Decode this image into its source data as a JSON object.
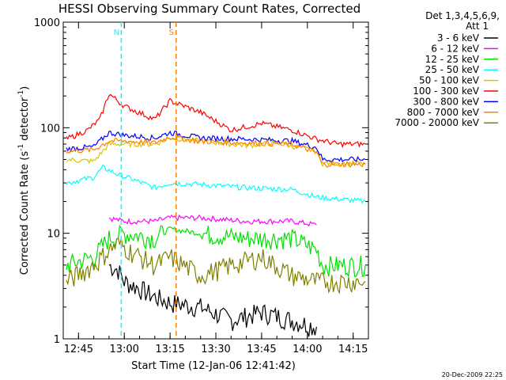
{
  "chart_data": {
    "type": "line",
    "title": "HESSI Observing Summary Count Rates, Corrected",
    "xlabel": "Start Time (12-Jan-06 12:41:42)",
    "ylabel_main": "Corrected Count Rate (s",
    "ylabel_sup": "-1",
    "ylabel_tail": " detector",
    "ylabel_sup2": "-1",
    "ylabel_close": ")",
    "yscale": "log",
    "ylim": [
      1,
      1000
    ],
    "xlim_minutes": [
      "12:40",
      "14:20"
    ],
    "x_ticks": [
      "12:45",
      "13:00",
      "13:15",
      "13:30",
      "13:45",
      "14:00",
      "14:15"
    ],
    "y_ticks": [
      "1",
      "10",
      "100",
      "1000"
    ],
    "legend_header": [
      "Det 1,3,4,5,6,9,",
      "Att 1"
    ],
    "legend_position": "right",
    "footer_date": "20-Dec-2009 22:25",
    "markers": [
      {
        "label": "N",
        "time": "12:59",
        "color": "#00ffff"
      },
      {
        "label": "S",
        "time": "13:17",
        "color": "#ff8000"
      }
    ],
    "series": [
      {
        "name": "3 - 6 keV",
        "color": "#000000",
        "points": [
          [
            "12:55",
            5
          ],
          [
            "12:58",
            4.5
          ],
          [
            "13:00",
            3.5
          ],
          [
            "13:05",
            3
          ],
          [
            "13:10",
            2.5
          ],
          [
            "13:15",
            2.2
          ],
          [
            "13:25",
            2
          ],
          [
            "13:35",
            1.5
          ],
          [
            "13:45",
            1.8
          ],
          [
            "13:55",
            1.5
          ],
          [
            "14:03",
            1.3
          ]
        ]
      },
      {
        "name": "6 - 12 keV",
        "color": "#ff00ff",
        "points": [
          [
            "12:55",
            14
          ],
          [
            "13:00",
            13
          ],
          [
            "13:10",
            13
          ],
          [
            "13:15",
            14
          ],
          [
            "13:25",
            14
          ],
          [
            "13:40",
            13
          ],
          [
            "13:55",
            13
          ],
          [
            "14:03",
            12
          ]
        ]
      },
      {
        "name": "12 - 25 keV",
        "color": "#00e000",
        "points": [
          [
            "12:41",
            5
          ],
          [
            "12:50",
            6
          ],
          [
            "12:55",
            9
          ],
          [
            "13:00",
            10
          ],
          [
            "13:10",
            9
          ],
          [
            "13:15",
            11
          ],
          [
            "13:25",
            10
          ],
          [
            "13:40",
            9
          ],
          [
            "13:55",
            9
          ],
          [
            "14:03",
            7
          ],
          [
            "14:05",
            5
          ],
          [
            "14:19",
            5
          ]
        ]
      },
      {
        "name": "25 - 50 keV",
        "color": "#00ffff",
        "points": [
          [
            "12:41",
            30
          ],
          [
            "12:50",
            34
          ],
          [
            "12:53",
            42
          ],
          [
            "12:58",
            36
          ],
          [
            "13:02",
            33
          ],
          [
            "13:10",
            27
          ],
          [
            "13:15",
            30
          ],
          [
            "13:25",
            29
          ],
          [
            "13:40",
            27
          ],
          [
            "13:55",
            26
          ],
          [
            "14:03",
            22
          ],
          [
            "14:19",
            20
          ]
        ]
      },
      {
        "name": "50 - 100 keV",
        "color": "#e0c000",
        "points": [
          [
            "12:41",
            50
          ],
          [
            "12:50",
            48
          ],
          [
            "12:55",
            70
          ],
          [
            "13:00",
            70
          ],
          [
            "13:10",
            70
          ],
          [
            "13:15",
            80
          ],
          [
            "13:25",
            75
          ],
          [
            "13:40",
            68
          ],
          [
            "13:50",
            72
          ],
          [
            "14:03",
            60
          ],
          [
            "14:05",
            46
          ],
          [
            "14:19",
            46
          ]
        ]
      },
      {
        "name": "100 - 300 keV",
        "color": "#ff0000",
        "points": [
          [
            "12:41",
            78
          ],
          [
            "12:48",
            95
          ],
          [
            "12:52",
            120
          ],
          [
            "12:55",
            210
          ],
          [
            "13:00",
            160
          ],
          [
            "13:10",
            120
          ],
          [
            "13:15",
            180
          ],
          [
            "13:25",
            140
          ],
          [
            "13:35",
            95
          ],
          [
            "13:45",
            110
          ],
          [
            "13:55",
            95
          ],
          [
            "14:03",
            78
          ],
          [
            "14:10",
            70
          ],
          [
            "14:19",
            70
          ]
        ]
      },
      {
        "name": "300 - 800 keV",
        "color": "#0000ff",
        "points": [
          [
            "12:41",
            63
          ],
          [
            "12:50",
            66
          ],
          [
            "12:55",
            90
          ],
          [
            "13:00",
            85
          ],
          [
            "13:10",
            80
          ],
          [
            "13:15",
            90
          ],
          [
            "13:25",
            80
          ],
          [
            "13:40",
            78
          ],
          [
            "13:55",
            75
          ],
          [
            "14:03",
            65
          ],
          [
            "14:05",
            50
          ],
          [
            "14:19",
            50
          ]
        ]
      },
      {
        "name": "800 - 7000 keV",
        "color": "#ff8000",
        "points": [
          [
            "12:41",
            60
          ],
          [
            "12:50",
            62
          ],
          [
            "12:55",
            75
          ],
          [
            "13:00",
            75
          ],
          [
            "13:10",
            72
          ],
          [
            "13:15",
            82
          ],
          [
            "13:25",
            74
          ],
          [
            "13:40",
            72
          ],
          [
            "13:55",
            70
          ],
          [
            "14:03",
            58
          ],
          [
            "14:05",
            45
          ],
          [
            "14:19",
            45
          ]
        ]
      },
      {
        "name": "7000 - 20000 keV",
        "color": "#808000",
        "points": [
          [
            "12:41",
            3.5
          ],
          [
            "12:50",
            5
          ],
          [
            "12:55",
            7
          ],
          [
            "12:58",
            8
          ],
          [
            "13:05",
            6
          ],
          [
            "13:10",
            5
          ],
          [
            "13:15",
            6
          ],
          [
            "13:25",
            4
          ],
          [
            "13:35",
            5
          ],
          [
            "13:45",
            6
          ],
          [
            "13:55",
            4
          ],
          [
            "14:03",
            3.5
          ],
          [
            "14:10",
            3.5
          ],
          [
            "14:19",
            3.5
          ]
        ]
      }
    ]
  }
}
